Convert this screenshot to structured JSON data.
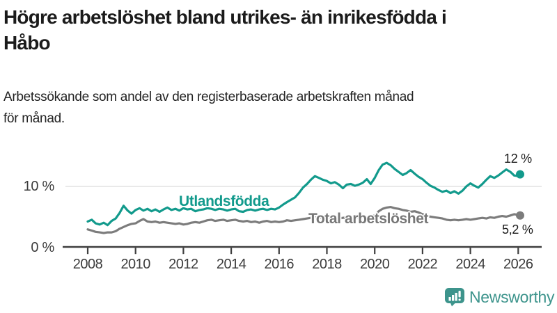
{
  "header": {
    "title_lines": [
      "Högre arbetslöshet bland utrikes- än inrikesfödda i",
      "Håbo"
    ],
    "subtitle_lines": [
      "Arbetssökande som andel av den registerbaserade arbetskraften månad",
      "för månad."
    ]
  },
  "chart_data": {
    "type": "line",
    "title": "Högre arbetslöshet bland utrikes- än inrikesfödda i Håbo",
    "xlabel": "",
    "ylabel": "Arbetssökande som andel av den registerbaserade arbetskraften (%)",
    "xlim": [
      2008,
      2026.08
    ],
    "ylim": [
      0,
      15
    ],
    "grid": "single horizontal gridline at 10 %",
    "legend_position": "inline-labels-on-lines",
    "x_tick_years": [
      2008,
      2010,
      2012,
      2014,
      2016,
      2018,
      2020,
      2022,
      2024,
      2026
    ],
    "y_ticks": [
      {
        "value": 0,
        "label": "0 %"
      },
      {
        "value": 10,
        "label": "10 %"
      }
    ],
    "x": [
      2008,
      2008.17,
      2008.33,
      2008.5,
      2008.67,
      2008.83,
      2009,
      2009.17,
      2009.33,
      2009.5,
      2009.67,
      2009.83,
      2010,
      2010.17,
      2010.33,
      2010.5,
      2010.67,
      2010.83,
      2011,
      2011.17,
      2011.33,
      2011.5,
      2011.67,
      2011.83,
      2012,
      2012.17,
      2012.33,
      2012.5,
      2012.67,
      2012.83,
      2013,
      2013.17,
      2013.33,
      2013.5,
      2013.67,
      2013.83,
      2014,
      2014.17,
      2014.33,
      2014.5,
      2014.67,
      2014.83,
      2015,
      2015.17,
      2015.33,
      2015.5,
      2015.67,
      2015.83,
      2016,
      2016.17,
      2016.33,
      2016.5,
      2016.67,
      2016.83,
      2017,
      2017.17,
      2017.33,
      2017.5,
      2017.67,
      2017.83,
      2018,
      2018.17,
      2018.33,
      2018.5,
      2018.67,
      2018.83,
      2019,
      2019.17,
      2019.33,
      2019.5,
      2019.67,
      2019.83,
      2020,
      2020.17,
      2020.33,
      2020.5,
      2020.67,
      2020.83,
      2021,
      2021.17,
      2021.33,
      2021.5,
      2021.67,
      2021.83,
      2022,
      2022.17,
      2022.33,
      2022.5,
      2022.67,
      2022.83,
      2023,
      2023.17,
      2023.33,
      2023.5,
      2023.67,
      2023.83,
      2024,
      2024.17,
      2024.33,
      2024.5,
      2024.67,
      2024.83,
      2025,
      2025.17,
      2025.33,
      2025.5,
      2025.67,
      2025.83,
      2026,
      2026.08
    ],
    "series": [
      {
        "id": "utlandsfodda",
        "name": "Utlandsfödda",
        "color": "#129a8c",
        "end_label": "12 %",
        "end_value": 12.0,
        "values": [
          4.2,
          4.5,
          3.9,
          3.7,
          4.0,
          3.6,
          4.3,
          4.7,
          5.6,
          6.8,
          6.0,
          5.5,
          6.1,
          6.4,
          6.0,
          6.3,
          5.9,
          6.2,
          5.8,
          6.2,
          6.5,
          6.1,
          6.3,
          6.0,
          6.4,
          6.2,
          6.3,
          5.9,
          6.1,
          6.2,
          6.4,
          6.3,
          6.1,
          6.3,
          6.2,
          6.0,
          6.2,
          6.3,
          5.9,
          5.8,
          6.1,
          6.2,
          6.0,
          6.2,
          6.3,
          6.1,
          6.3,
          6.2,
          6.5,
          7.0,
          7.4,
          7.8,
          8.2,
          8.9,
          9.8,
          10.4,
          11.1,
          11.7,
          11.4,
          11.1,
          10.9,
          10.5,
          10.7,
          10.3,
          9.7,
          10.3,
          10.4,
          10.1,
          10.3,
          10.6,
          11.2,
          10.4,
          11.4,
          12.7,
          13.6,
          13.9,
          13.5,
          12.9,
          12.4,
          11.9,
          12.2,
          12.7,
          12.1,
          11.6,
          11.2,
          10.6,
          10.1,
          9.8,
          9.4,
          9.1,
          9.3,
          8.9,
          9.2,
          8.8,
          9.3,
          10.0,
          10.5,
          10.1,
          9.8,
          10.4,
          11.1,
          11.7,
          11.4,
          11.8,
          12.3,
          12.8,
          12.4,
          11.8,
          11.7,
          12.0
        ]
      },
      {
        "id": "total",
        "name": "Total arbetslöshet",
        "color": "#7c7c7c",
        "end_label": "5,2 %",
        "end_value": 5.2,
        "values": [
          2.9,
          2.7,
          2.5,
          2.4,
          2.3,
          2.4,
          2.4,
          2.6,
          3.0,
          3.3,
          3.6,
          3.8,
          3.9,
          4.3,
          4.6,
          4.2,
          4.1,
          4.2,
          4.0,
          4.1,
          4.0,
          3.9,
          3.8,
          3.9,
          3.7,
          3.8,
          4.0,
          4.1,
          4.0,
          4.2,
          4.4,
          4.5,
          4.3,
          4.4,
          4.5,
          4.3,
          4.4,
          4.5,
          4.3,
          4.2,
          4.3,
          4.1,
          4.2,
          4.0,
          4.2,
          4.3,
          4.1,
          4.2,
          4.1,
          4.2,
          4.4,
          4.3,
          4.4,
          4.5,
          4.6,
          4.7,
          4.8,
          4.9,
          4.8,
          4.9,
          4.8,
          4.9,
          4.8,
          4.7,
          4.8,
          4.9,
          4.7,
          4.8,
          4.9,
          5.0,
          4.9,
          5.0,
          5.2,
          5.9,
          6.3,
          6.5,
          6.6,
          6.4,
          6.3,
          6.1,
          6.0,
          5.8,
          5.9,
          5.7,
          5.4,
          5.2,
          5.0,
          4.9,
          4.8,
          4.7,
          4.5,
          4.4,
          4.5,
          4.4,
          4.5,
          4.6,
          4.5,
          4.6,
          4.7,
          4.8,
          4.7,
          4.9,
          4.8,
          5.0,
          5.1,
          5.0,
          5.2,
          5.4,
          5.3,
          5.2
        ]
      }
    ]
  },
  "colors": {
    "accent_teal": "#129a8c",
    "series_gray": "#7c7c7c",
    "axis": "#3f3f3f",
    "gridline": "#dcdcdc",
    "brand_teal": "#3d948c",
    "text": "#1b1b1b"
  },
  "footer": {
    "brand": "Newsworthy"
  }
}
